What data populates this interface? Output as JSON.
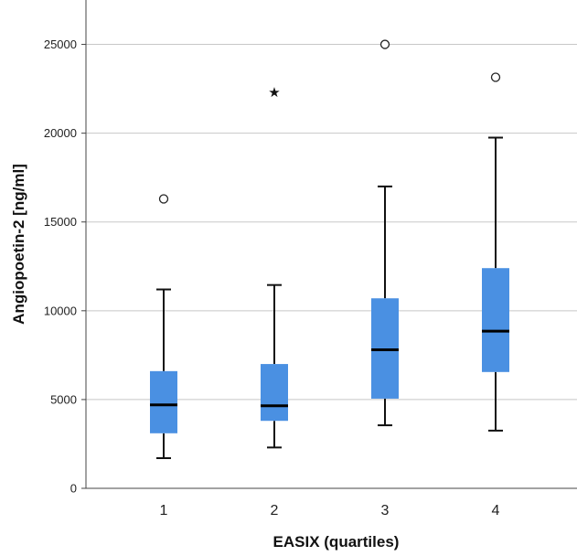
{
  "chart_data": {
    "type": "boxplot",
    "title": "",
    "xlabel": "EASIX (quartiles)",
    "ylabel": "Angiopoetin-2 [ng/ml]",
    "ylim": [
      0,
      27500
    ],
    "yticks": [
      0,
      5000,
      10000,
      15000,
      20000,
      25000
    ],
    "grid": true,
    "box_color": "#4a90e2",
    "categories": [
      "1",
      "2",
      "3",
      "4"
    ],
    "boxes": [
      {
        "category": "1",
        "whisker_low": 1700,
        "q1": 3100,
        "median": 4700,
        "q3": 6600,
        "whisker_high": 11200,
        "outliers": [
          {
            "value": 16300,
            "kind": "circle"
          }
        ]
      },
      {
        "category": "2",
        "whisker_low": 2300,
        "q1": 3800,
        "median": 4650,
        "q3": 7000,
        "whisker_high": 11450,
        "outliers": [
          {
            "value": 22300,
            "kind": "star"
          }
        ]
      },
      {
        "category": "3",
        "whisker_low": 3550,
        "q1": 5050,
        "median": 7800,
        "q3": 10700,
        "whisker_high": 17000,
        "outliers": [
          {
            "value": 25000,
            "kind": "circle"
          }
        ]
      },
      {
        "category": "4",
        "whisker_low": 3250,
        "q1": 6550,
        "median": 8850,
        "q3": 12400,
        "whisker_high": 19750,
        "outliers": [
          {
            "value": 23150,
            "kind": "circle"
          }
        ]
      }
    ]
  }
}
